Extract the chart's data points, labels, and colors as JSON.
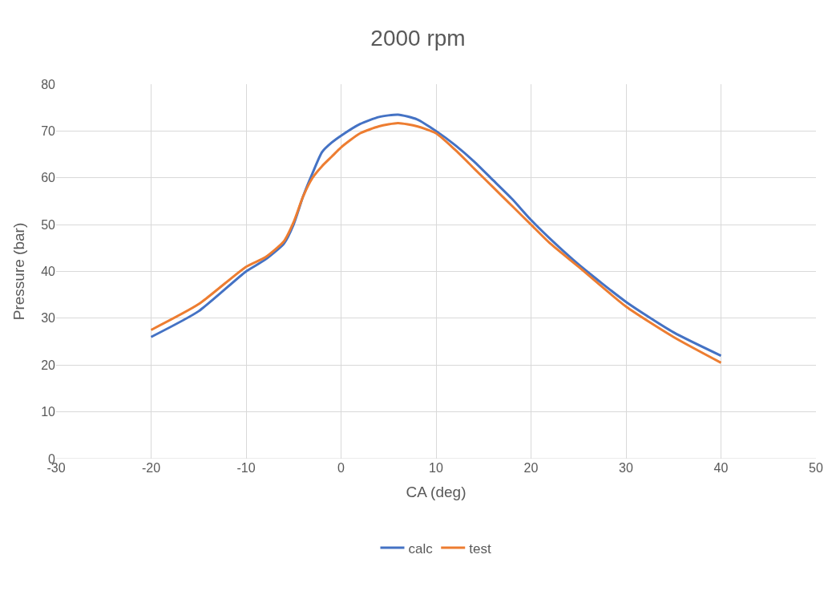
{
  "chart_data": {
    "type": "line",
    "title": "2000 rpm",
    "xlabel": "CA (deg)",
    "ylabel": "Pressure (bar)",
    "x": [
      -20,
      -15,
      -10,
      -8,
      -6,
      -5,
      -4,
      -3,
      -2,
      -1,
      0,
      2,
      4,
      6,
      8,
      10,
      12,
      14,
      16,
      18,
      20,
      22,
      25,
      30,
      35,
      40
    ],
    "series": [
      {
        "name": "calc",
        "color": "#4472c4",
        "values": [
          26,
          31.5,
          40,
          42.5,
          46,
          50,
          56,
          61,
          65.5,
          67.5,
          69,
          71.5,
          73,
          73.5,
          72.5,
          70,
          67,
          63.5,
          59.5,
          55.5,
          51,
          47,
          41.5,
          33.5,
          27,
          22
        ]
      },
      {
        "name": "test",
        "color": "#ed7d31",
        "values": [
          27.5,
          33,
          41,
          43,
          46.5,
          50.5,
          56,
          60,
          62.5,
          64.5,
          66.5,
          69.5,
          71,
          71.7,
          71,
          69.5,
          66,
          62,
          58,
          54,
          50,
          46,
          41,
          32.5,
          26,
          20.5
        ]
      }
    ],
    "xlim": [
      -30,
      50
    ],
    "xticks": [
      -30,
      -20,
      -10,
      0,
      10,
      20,
      30,
      40,
      50
    ],
    "ylim": [
      0,
      80
    ],
    "yticks": [
      0,
      10,
      20,
      30,
      40,
      50,
      60,
      70,
      80
    ],
    "grid": true,
    "legend": "bottom",
    "marker": "none",
    "line_style": "solid"
  }
}
